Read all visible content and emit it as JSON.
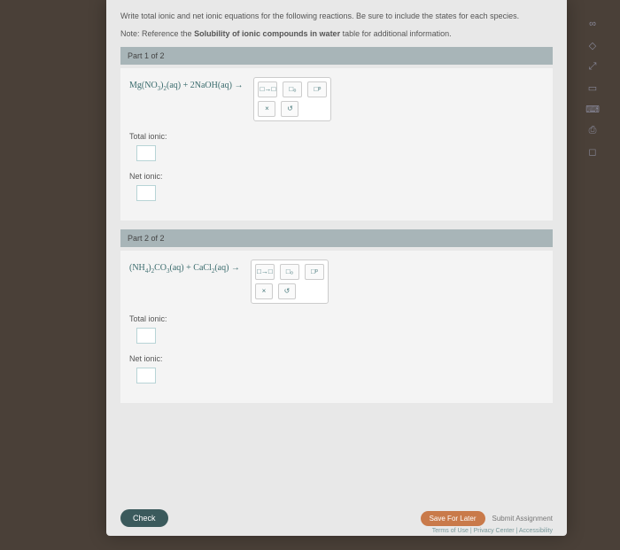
{
  "instructions": "Write total ionic and net ionic equations for the following reactions. Be sure to include the states for each species.",
  "note_prefix": "Note:",
  "note_text": " Reference the ",
  "note_bold": "Solubility of ionic compounds in water",
  "note_suffix": " table for additional information.",
  "parts": [
    {
      "header": "Part 1 of 2",
      "equation_html": "Mg(NO<sub>3</sub>)<sub>2</sub>(aq) + 2NaOH(aq) →",
      "total_label": "Total ionic:",
      "net_label": "Net ionic:"
    },
    {
      "header": "Part 2 of 2",
      "equation_html": "(NH<sub>4</sub>)<sub>2</sub>CO<sub>3</sub>(aq) + CaCl<sub>2</sub>(aq) →",
      "total_label": "Total ionic:",
      "net_label": "Net ionic:"
    }
  ],
  "toolbar": {
    "r1": [
      "□→□",
      "□₀",
      "□ᵖ"
    ],
    "r2": [
      "×",
      "↺"
    ]
  },
  "buttons": {
    "check": "Check",
    "save": "Save For Later",
    "submit": "Submit Assignment"
  },
  "footer": "Terms of Use  |  Privacy Center  |  Accessibility",
  "side_icons": [
    "∞",
    "◇",
    "⤢",
    "▭",
    "⌨",
    "⎙",
    "◻"
  ],
  "colors": {
    "page_bg": "#e8e8e8",
    "part_header_bg": "#a8b5b8",
    "part_body_bg": "#f4f4f4",
    "accent": "#3a6b6d",
    "check_btn": "#3b5a5c",
    "save_btn": "#c97a4a"
  }
}
